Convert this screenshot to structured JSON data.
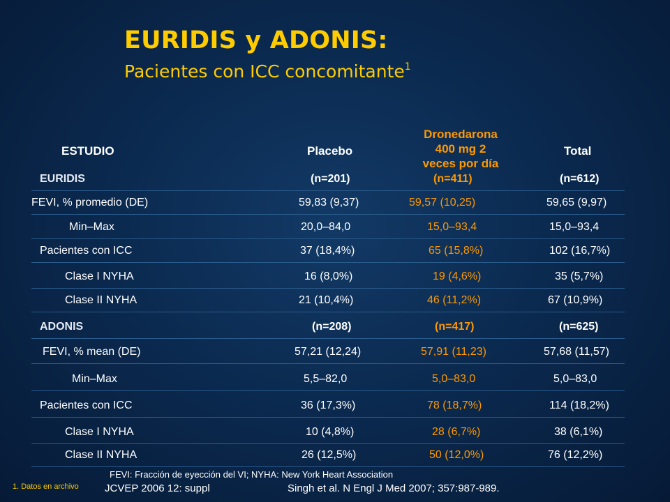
{
  "title": "EURIDIS y ADONIS:",
  "subtitle": "Pacientes con ICC concomitante",
  "subtitle_sup": "1",
  "headers": {
    "study": "ESTUDIO",
    "placebo": "Placebo",
    "drone_l1": "Dronedarona",
    "drone_l2": "400 mg 2",
    "drone_l3": "veces por día",
    "total": "Total"
  },
  "rows": [
    {
      "label": "EURIDIS",
      "placebo": "(n=201)",
      "drone": "(n=411)",
      "total": "(n=612)"
    },
    {
      "label": "FEVI, % promedio (DE)",
      "placebo": "59,83 (9,37)",
      "drone": "59,57 (10,25)",
      "total": "59,65 (9,97)"
    },
    {
      "label": "Min–Max",
      "placebo": "20,0–84,0",
      "drone": "15,0–93,4",
      "total": "15,0–93,4"
    },
    {
      "label": "Pacientes con ICC",
      "placebo": "37 (18,4%)",
      "drone": "65 (15,8%)",
      "total": "102 (16,7%)"
    },
    {
      "label": "Clase I NYHA",
      "placebo": "16 (8,0%)",
      "drone": "19 (4,6%)",
      "total": "35 (5,7%)"
    },
    {
      "label": "Clase II NYHA",
      "placebo": "21 (10,4%)",
      "drone": "46 (11,2%)",
      "total": "67 (10,9%)"
    },
    {
      "label": "ADONIS",
      "placebo": "(n=208)",
      "drone": "(n=417)",
      "total": "(n=625)"
    },
    {
      "label": "FEVI, % mean (DE)",
      "placebo": "57,21 (12,24)",
      "drone": "57,91 (11,23)",
      "total": "57,68 (11,57)"
    },
    {
      "label": "Min–Max",
      "placebo": "5,5–82,0",
      "drone": "5,0–83,0",
      "total": "5,0–83,0"
    },
    {
      "label": "Pacientes con ICC",
      "placebo": "36 (17,3%)",
      "drone": "78 (18,7%)",
      "total": "114 (18,2%)"
    },
    {
      "label": "Clase I NYHA",
      "placebo": "10 (4,8%)",
      "drone": "28 (6,7%)",
      "total": "38 (6,1%)"
    },
    {
      "label": "Clase II NYHA",
      "placebo": "26 (12,5%)",
      "drone": "50 (12,0%)",
      "total": "76 (12,2%)"
    }
  ],
  "footnote": "FEVI: Fracción de eyección del VI; NYHA: New York Heart Association",
  "footnote_number": "1.  Datos en archivo",
  "ref1": "JCVEP 2006 12: suppl",
  "ref2": "Singh et al. N Engl J Med 2007; 357:987-989.",
  "colors": {
    "title": "#ffcc00",
    "drone": "#ff9900",
    "text": "#ffffff",
    "background": "#0b2a50"
  }
}
